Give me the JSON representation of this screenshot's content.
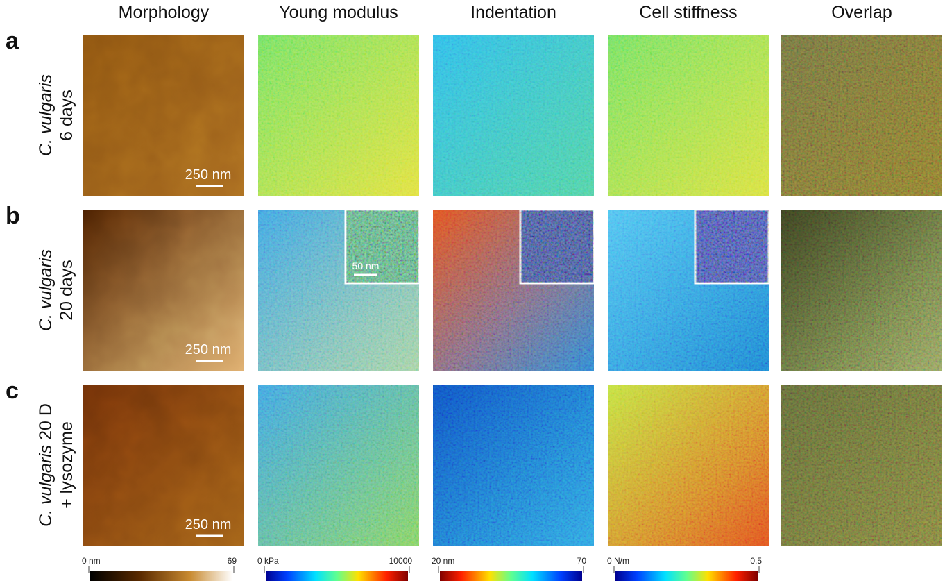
{
  "columns": [
    "Morphology",
    "Young modulus",
    "Indentation",
    "Cell stiffness",
    "Overlap"
  ],
  "rows": [
    {
      "letter": "a",
      "species": "C. vulgaris",
      "condition": "6 days",
      "scale_bar": "250 nm"
    },
    {
      "letter": "b",
      "species": "C. vulgaris",
      "condition": "20 days",
      "scale_bar": "250 nm",
      "inset_scale_bar": "50 nm"
    },
    {
      "letter": "c",
      "species": "C. vulgaris",
      "condition": "20 D",
      "treatment": "+ lysozyme",
      "scale_bar": "250 nm"
    }
  ],
  "colorbars": [
    {
      "min": "0 nm",
      "max": 69
    },
    {
      "min": "0 kPa",
      "max": 10000
    },
    {
      "min": "20 nm",
      "max": 70
    },
    {
      "min": "0 N/m",
      "max": 0.5
    }
  ]
}
